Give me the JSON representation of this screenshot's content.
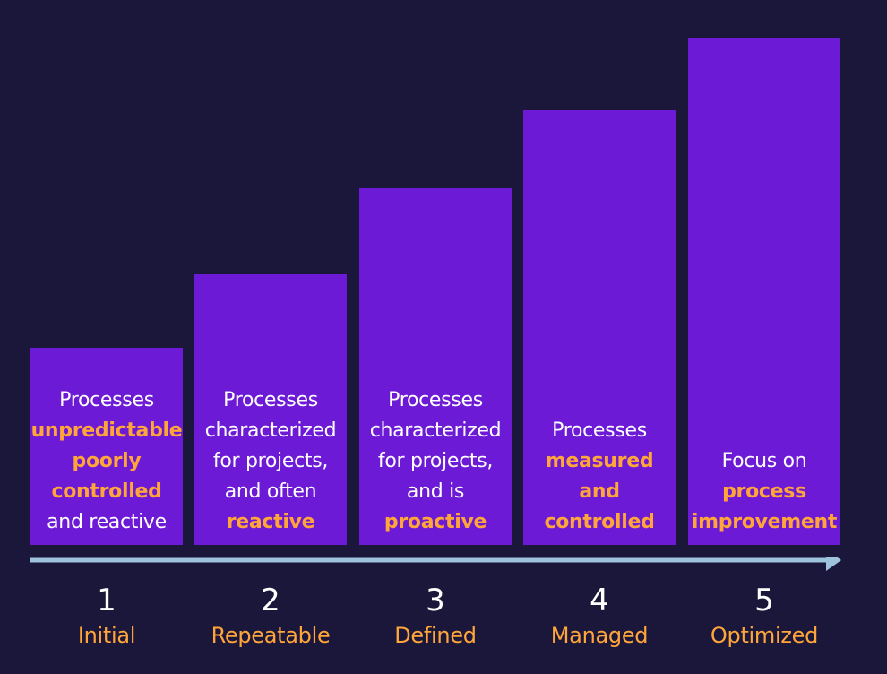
{
  "colors": {
    "background": "#1b173a",
    "bar": "#6c1ad6",
    "highlight": "#ffa53a",
    "text": "#ffffff",
    "arrow": "#9ec3dd"
  },
  "levels": [
    {
      "number": "1",
      "name": "Initial",
      "lines": [
        {
          "text": "Processes",
          "highlight": false
        },
        {
          "text": "unpredictable",
          "highlight": true
        },
        {
          "text": "poorly",
          "highlight": true
        },
        {
          "text": "controlled",
          "highlight": true
        },
        {
          "text": "and reactive",
          "highlight": false
        }
      ]
    },
    {
      "number": "2",
      "name": "Repeatable",
      "lines": [
        {
          "text": "Processes",
          "highlight": false
        },
        {
          "text": "characterized",
          "highlight": false
        },
        {
          "text": "for projects,",
          "highlight": false
        },
        {
          "text": "and often",
          "highlight": false
        },
        {
          "text": "reactive",
          "highlight": true
        }
      ]
    },
    {
      "number": "3",
      "name": "Defined",
      "lines": [
        {
          "text": "Processes",
          "highlight": false
        },
        {
          "text": "characterized",
          "highlight": false
        },
        {
          "text": "for projects,",
          "highlight": false
        },
        {
          "text": "and is",
          "highlight": false
        },
        {
          "text": "proactive",
          "highlight": true
        }
      ]
    },
    {
      "number": "4",
      "name": "Managed",
      "lines": [
        {
          "text": "Processes",
          "highlight": false
        },
        {
          "text": "measured",
          "highlight": true
        },
        {
          "text": "and",
          "highlight": true
        },
        {
          "text": "controlled",
          "highlight": true
        }
      ]
    },
    {
      "number": "5",
      "name": "Optimized",
      "lines": [
        {
          "text": "Focus on",
          "highlight": false
        },
        {
          "text": "process",
          "highlight": true
        },
        {
          "text": "improvement",
          "highlight": true
        }
      ]
    }
  ]
}
